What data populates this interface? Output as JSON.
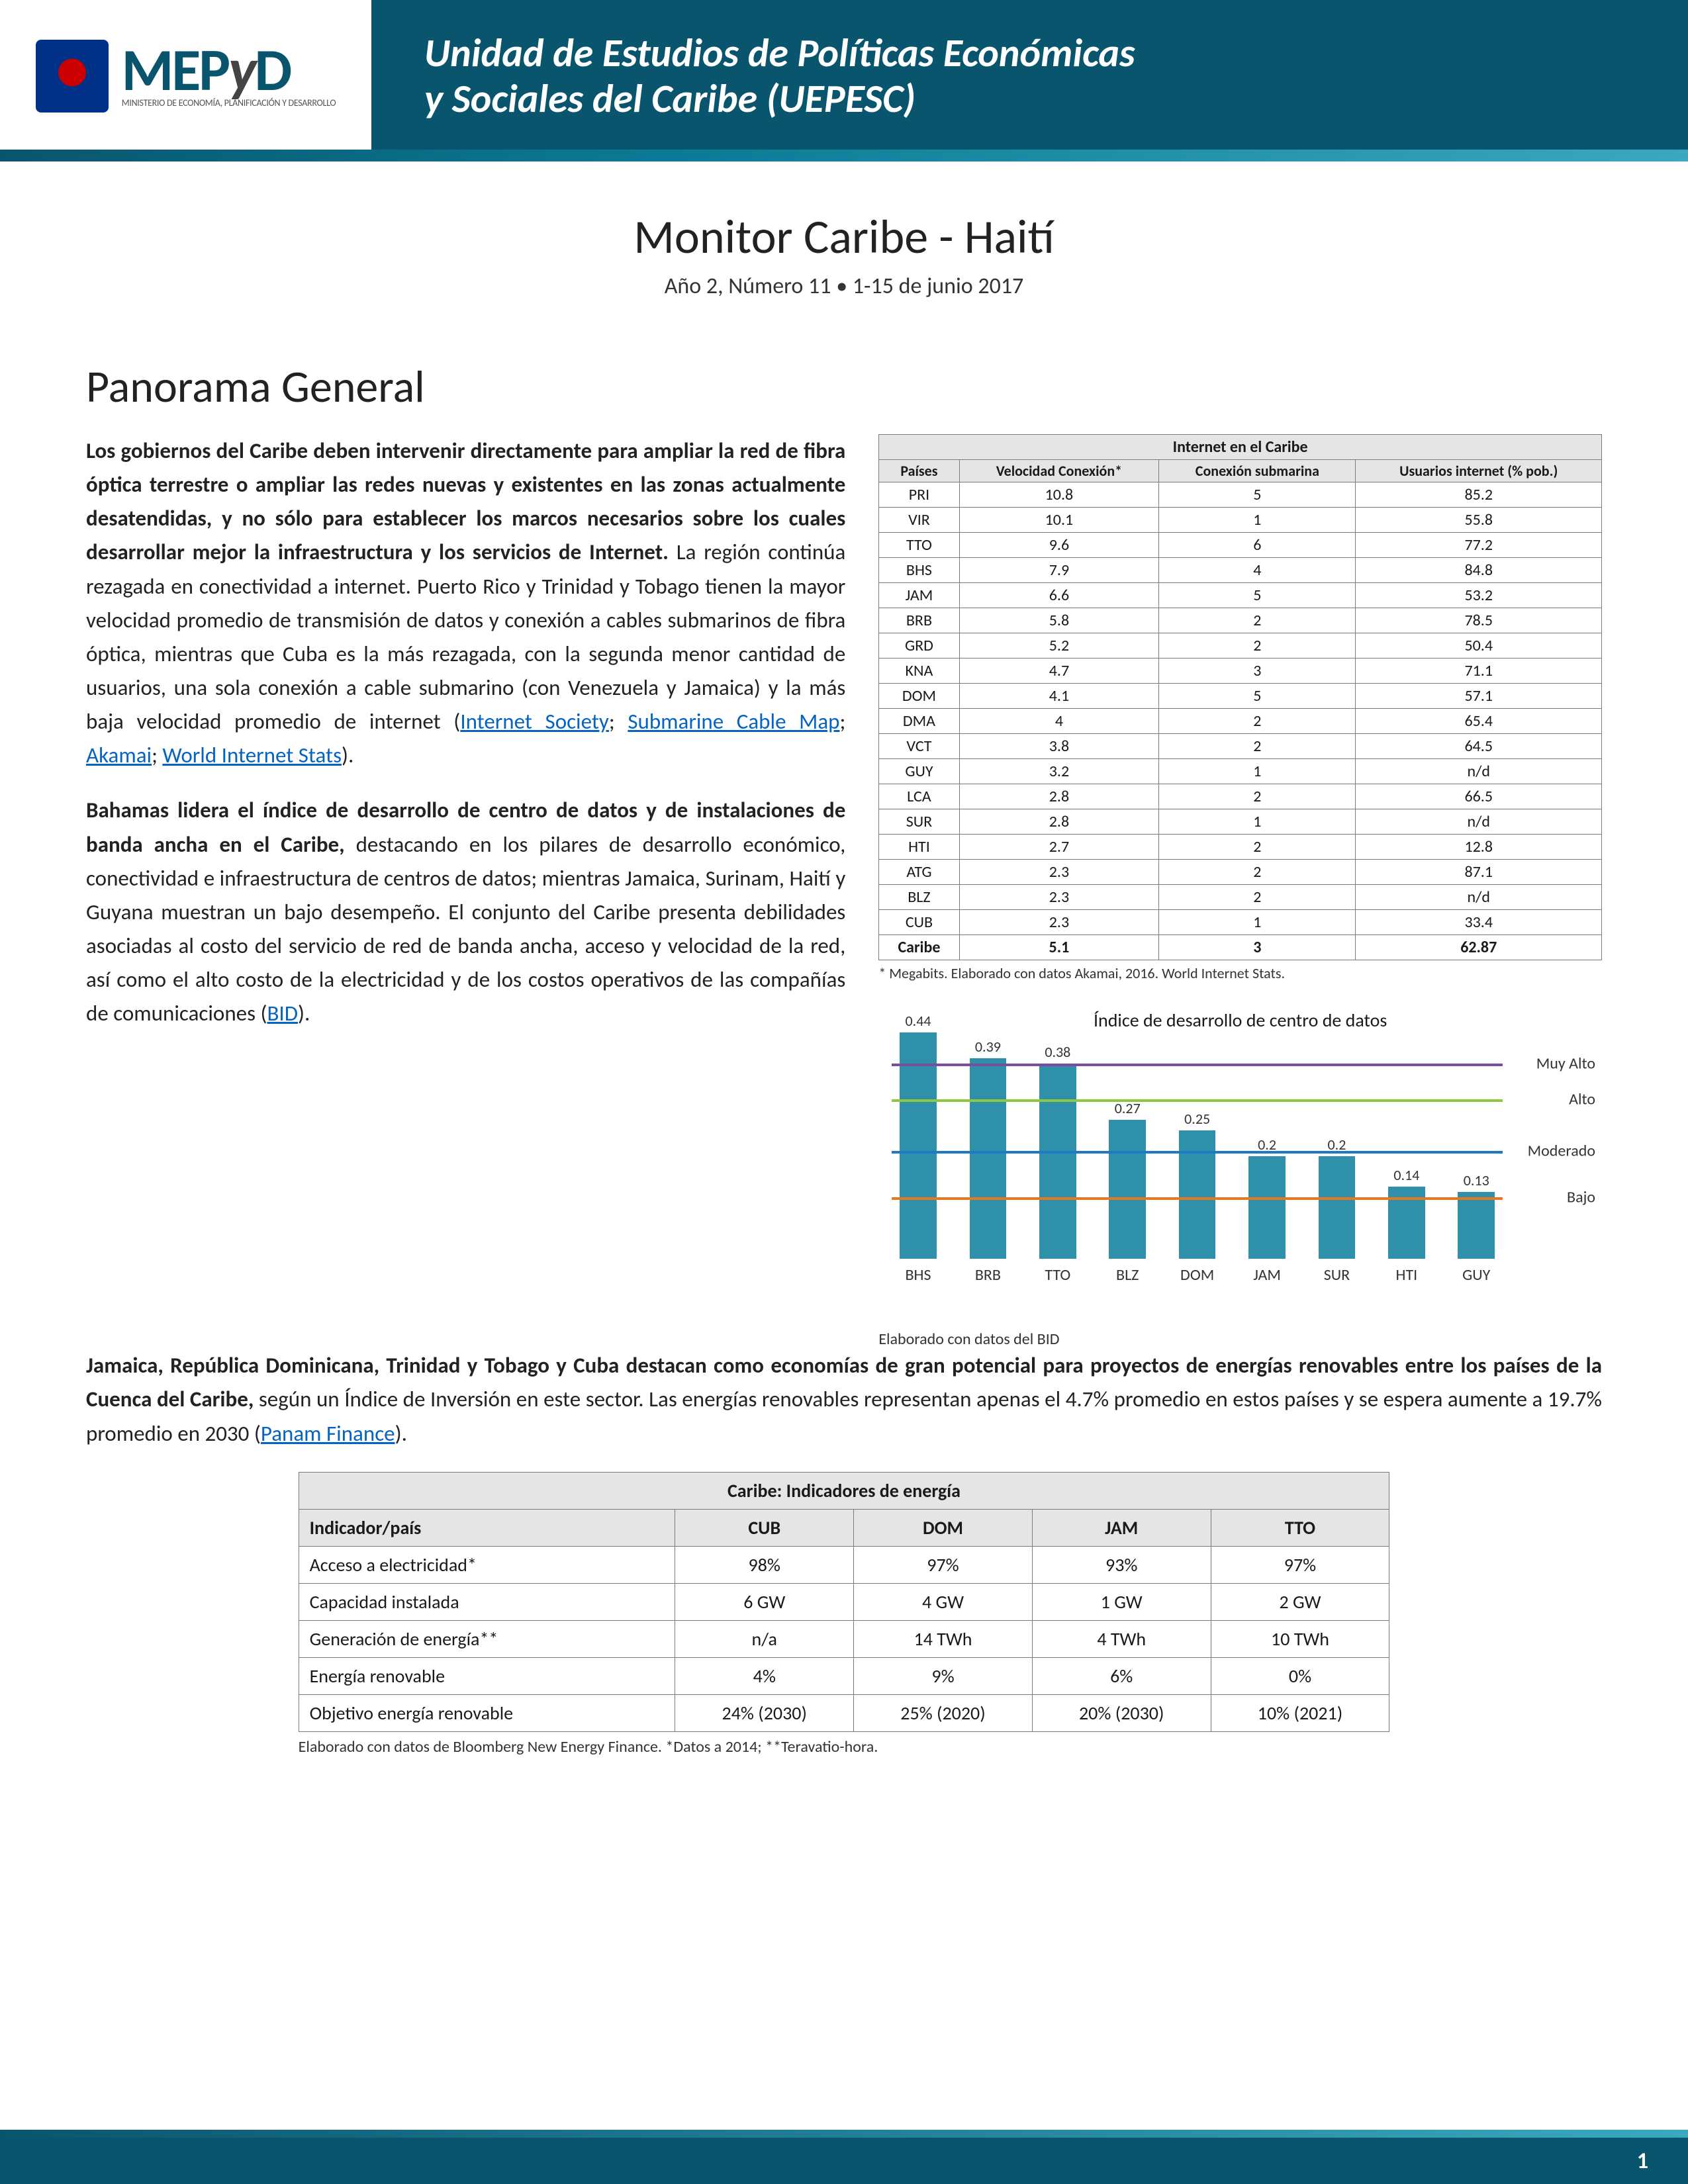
{
  "header": {
    "org_acronym_pre": "MEP",
    "org_acronym_y": "y",
    "org_acronym_post": "D",
    "org_subtitle": "MINISTERIO DE ECONOMÍA, PLANIFICACIÓN Y DESARROLLO",
    "unit_line1": "Unidad de Estudios de Políticas Económicas",
    "unit_line2": "y Sociales del Caribe (UEPESC)"
  },
  "title": {
    "main": "Monitor Caribe - Haití",
    "sub": "Año 2, Número 11 • 1-15 de junio 2017"
  },
  "section_heading": "Panorama General",
  "para1": {
    "lead": "Los gobiernos del Caribe deben intervenir directamente para ampliar la red de fibra óptica terrestre o ampliar las redes nuevas y existentes en las zonas actualmente desatendidas, y no sólo para establecer los marcos necesarios sobre los cuales desarrollar mejor la infraestructura y los servicios de Internet.",
    "rest_a": " La región continúa rezagada en conectividad a internet. Puerto Rico y Trinidad y Tobago tienen la mayor velocidad promedio de transmisión de datos y conexión a cables submarinos de fibra óptica, mientras que Cuba es la más rezagada, con la segunda menor cantidad de usuarios, una sola conexión a cable submarino (con Venezuela y Jamaica) y la más baja velocidad promedio de internet (",
    "link1": "Internet Society",
    "sep": "; ",
    "link2": "Submarine Cable Map",
    "link3": "Akamai",
    "link4": "World Internet Stats",
    "close": ")."
  },
  "para2": {
    "lead": "Bahamas lidera el índice de desarrollo de centro de datos y de instalaciones de banda ancha en el Caribe,",
    "rest": " destacando en los pilares de desarrollo económico, conectividad e infraestructura de centros de datos; mientras Jamaica, Surinam, Haití y Guyana muestran un bajo desempeño. El conjunto del Caribe presenta debilidades asociadas al costo del servicio de red de banda ancha, acceso y velocidad de la red, así como el alto costo de la electricidad y de los costos operativos de las compañías de comunicaciones (",
    "link": "BID",
    "close": ")."
  },
  "para3": {
    "lead": "Jamaica, República Dominicana, Trinidad y Tobago y Cuba destacan como economías de gran potencial para proyectos de energías renovables entre los países de la Cuenca del Caribe,",
    "rest": " según un Índice de Inversión en este sector. Las energías renovables representan apenas el 4.7% promedio en estos países y se espera aumente a 19.7% promedio en 2030 (",
    "link": "Panam Finance",
    "close": ")."
  },
  "internet_table": {
    "title": "Internet en el Caribe",
    "head_country": "Países",
    "head_speed": "Velocidad Conexión*",
    "head_sub": "Conexión submarina",
    "head_users": "Usuarios internet (% pob.)",
    "rows": [
      {
        "c": "PRI",
        "s": "10.8",
        "n": "5",
        "u": "85.2"
      },
      {
        "c": "VIR",
        "s": "10.1",
        "n": "1",
        "u": "55.8"
      },
      {
        "c": "TTO",
        "s": "9.6",
        "n": "6",
        "u": "77.2"
      },
      {
        "c": "BHS",
        "s": "7.9",
        "n": "4",
        "u": "84.8"
      },
      {
        "c": "JAM",
        "s": "6.6",
        "n": "5",
        "u": "53.2"
      },
      {
        "c": "BRB",
        "s": "5.8",
        "n": "2",
        "u": "78.5"
      },
      {
        "c": "GRD",
        "s": "5.2",
        "n": "2",
        "u": "50.4"
      },
      {
        "c": "KNA",
        "s": "4.7",
        "n": "3",
        "u": "71.1"
      },
      {
        "c": "DOM",
        "s": "4.1",
        "n": "5",
        "u": "57.1"
      },
      {
        "c": "DMA",
        "s": "4",
        "n": "2",
        "u": "65.4"
      },
      {
        "c": "VCT",
        "s": "3.8",
        "n": "2",
        "u": "64.5"
      },
      {
        "c": "GUY",
        "s": "3.2",
        "n": "1",
        "u": "n/d"
      },
      {
        "c": "LCA",
        "s": "2.8",
        "n": "2",
        "u": "66.5"
      },
      {
        "c": "SUR",
        "s": "2.8",
        "n": "1",
        "u": "n/d"
      },
      {
        "c": "HTI",
        "s": "2.7",
        "n": "2",
        "u": "12.8"
      },
      {
        "c": "ATG",
        "s": "2.3",
        "n": "2",
        "u": "87.1"
      },
      {
        "c": "BLZ",
        "s": "2.3",
        "n": "2",
        "u": "n/d"
      },
      {
        "c": "CUB",
        "s": "2.3",
        "n": "1",
        "u": "33.4"
      }
    ],
    "total": {
      "c": "Caribe",
      "s": "5.1",
      "n": "3",
      "u": "62.87"
    },
    "footnote": "* Megabits. Elaborado con datos Akamai, 2016. World Internet Stats."
  },
  "chart": {
    "title": "Índice de desarrollo de centro de datos",
    "max": 0.45,
    "bar_color": "#2e91a9",
    "categories": [
      "BHS",
      "BRB",
      "TTO",
      "BLZ",
      "DOM",
      "JAM",
      "SUR",
      "HTI",
      "GUY"
    ],
    "values": [
      0.44,
      0.39,
      0.38,
      0.27,
      0.25,
      0.2,
      0.2,
      0.14,
      0.13
    ],
    "value_labels": [
      "0.44",
      "0.39",
      "0.38",
      "0.27",
      "0.25",
      "0.2",
      "0.2",
      "0.14",
      "0.13"
    ],
    "thresholds": [
      {
        "label": "Muy Alto",
        "y": 0.43,
        "color": "#7a4da0"
      },
      {
        "label": "Alto",
        "y": 0.36,
        "color": "#8fc73e"
      },
      {
        "label": "Moderado",
        "y": 0.26,
        "color": "#2079c7"
      },
      {
        "label": "Bajo",
        "y": 0.17,
        "color": "#e87722"
      }
    ],
    "footnote": "Elaborado con datos del BID"
  },
  "energy_table": {
    "title": "Caribe: Indicadores de energía",
    "head_indicator": "Indicador/país",
    "countries": [
      "CUB",
      "DOM",
      "JAM",
      "TTO"
    ],
    "rows": [
      {
        "ind": "Acceso a electricidad*",
        "v": [
          "98%",
          "97%",
          "93%",
          "97%"
        ]
      },
      {
        "ind": "Capacidad instalada",
        "v": [
          "6 GW",
          "4 GW",
          "1 GW",
          "2 GW"
        ]
      },
      {
        "ind": "Generación de energía**",
        "v": [
          "n/a",
          "14 TWh",
          "4 TWh",
          "10 TWh"
        ]
      },
      {
        "ind": "Energía renovable",
        "v": [
          "4%",
          "9%",
          "6%",
          "0%"
        ]
      },
      {
        "ind": "Objetivo energía renovable",
        "v": [
          "24% (2030)",
          "25% (2020)",
          "20% (2030)",
          "10% (2021)"
        ]
      }
    ],
    "footnote": "Elaborado con datos de Bloomberg New Energy Finance. *Datos a 2014; **Teravatio-hora."
  },
  "footer": {
    "page_number": "1"
  }
}
